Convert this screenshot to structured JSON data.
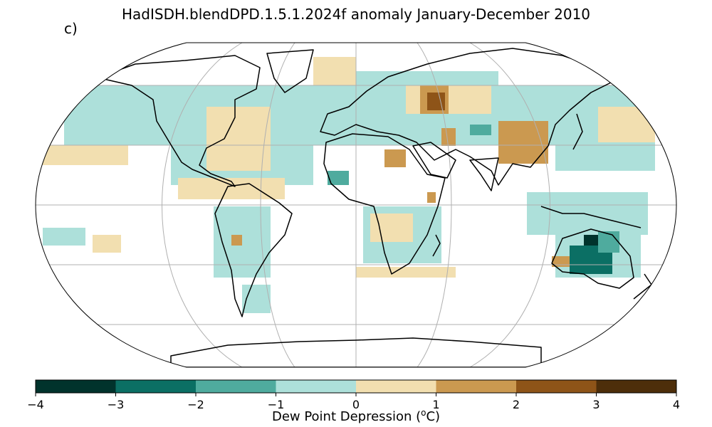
{
  "title": "HadISDH.blendDPD.1.5.1.2024f anomaly January-December 2010",
  "panel_label": "c)",
  "colorbar": {
    "label_text": "Dew Point Depression (",
    "label_sup": "o",
    "label_unit": "C)",
    "ticks": [
      "−4",
      "−3",
      "−2",
      "−1",
      "0",
      "1",
      "2",
      "3",
      "4"
    ],
    "tick_values": [
      -4,
      -3,
      -2,
      -1,
      0,
      1,
      2,
      3,
      4
    ],
    "colors": [
      "#01332c",
      "#0b6f64",
      "#4fab9e",
      "#ade0da",
      "#f2dfb0",
      "#cb9950",
      "#8e5418",
      "#4d2e0a"
    ]
  },
  "map": {
    "projection": "Robinson",
    "graticule": true,
    "land_color": "#ffffff",
    "coast_color": "#000000"
  }
}
